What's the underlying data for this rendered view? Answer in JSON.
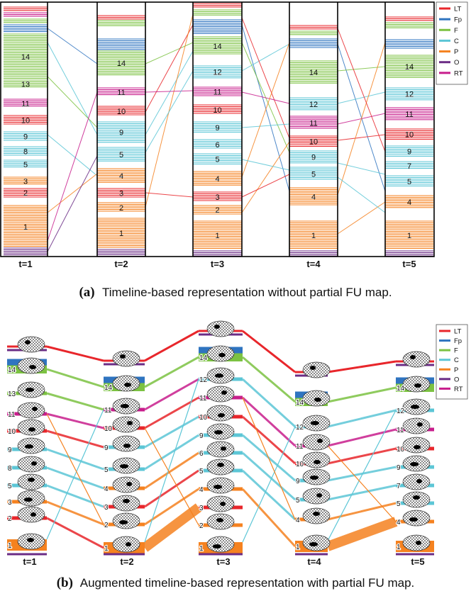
{
  "legend": [
    {
      "key": "LT",
      "label": "LT",
      "color": "#e8262b"
    },
    {
      "key": "Fp",
      "label": "Fp",
      "color": "#2f74c0"
    },
    {
      "key": "F",
      "label": "F",
      "color": "#7cc242"
    },
    {
      "key": "C",
      "label": "C",
      "color": "#5cc6d6"
    },
    {
      "key": "P",
      "label": "P",
      "color": "#f58220"
    },
    {
      "key": "O",
      "label": "O",
      "color": "#6b2c85"
    },
    {
      "key": "RT",
      "label": "RT",
      "color": "#c81e8c"
    }
  ],
  "timesteps": [
    "t=1",
    "t=2",
    "t=3",
    "t=4",
    "t=5"
  ],
  "cluster_labels": [
    [
      "14",
      "13",
      "11",
      "10",
      "9",
      "8",
      "5",
      "3",
      "2",
      "1"
    ],
    [
      "14",
      "11",
      "10",
      "9",
      "5",
      "4",
      "3",
      "2",
      "1"
    ],
    [
      "14",
      "12",
      "11",
      "10",
      "9",
      "6",
      "5",
      "4",
      "3",
      "2",
      "1"
    ],
    [
      "14",
      "12",
      "11",
      "10",
      "9",
      "5",
      "4",
      "1"
    ],
    [
      "14",
      "12",
      "11",
      "10",
      "9",
      "7",
      "5",
      "4",
      "1"
    ]
  ],
  "panel_b_labels": [
    [
      "14",
      "13",
      "11",
      "10",
      "9",
      "8",
      "5",
      "3",
      "2",
      "1"
    ],
    [
      "14",
      "11",
      "10",
      "9",
      "5",
      "4",
      "3",
      "2",
      "1"
    ],
    [
      "14",
      "12",
      "11",
      "10",
      "9",
      "6",
      "5",
      "4",
      "3",
      "2",
      "1"
    ],
    [
      "14",
      "12",
      "11",
      "10",
      "9",
      "5",
      "4",
      "1"
    ],
    [
      "14",
      "12",
      "11",
      "10",
      "9",
      "7",
      "5",
      "4",
      "1"
    ]
  ],
  "captions": {
    "a_letter": "(a)",
    "a_text": "Timeline-based representation without partial FU map.",
    "b_letter": "(b)",
    "b_text": "Augmented timeline-based representation with partial FU map."
  }
}
